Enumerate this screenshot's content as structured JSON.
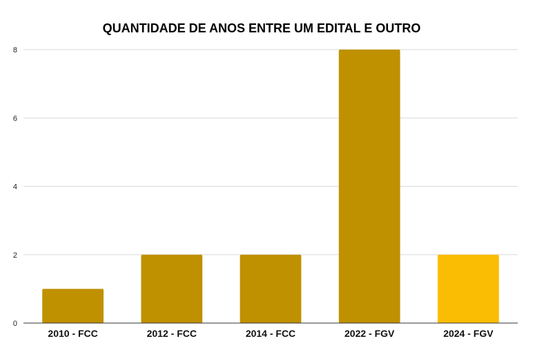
{
  "chart_data": {
    "type": "bar",
    "title": "QUANTIDADE DE ANOS ENTRE UM EDITAL E OUTRO",
    "xlabel": "",
    "ylabel": "",
    "categories": [
      "2010 - FCC",
      "2012 - FCC",
      "2014 - FCC",
      "2022 - FGV",
      "2024 - FGV"
    ],
    "values": [
      1,
      2,
      2,
      8,
      2
    ],
    "ylim": [
      0,
      8
    ],
    "yticks": [
      0,
      2,
      4,
      6,
      8
    ],
    "grid": true,
    "legend": "none",
    "colors": {
      "bar": "#bf9000",
      "highlight_bar": "#fbbc04",
      "highlight_index": 4
    }
  }
}
